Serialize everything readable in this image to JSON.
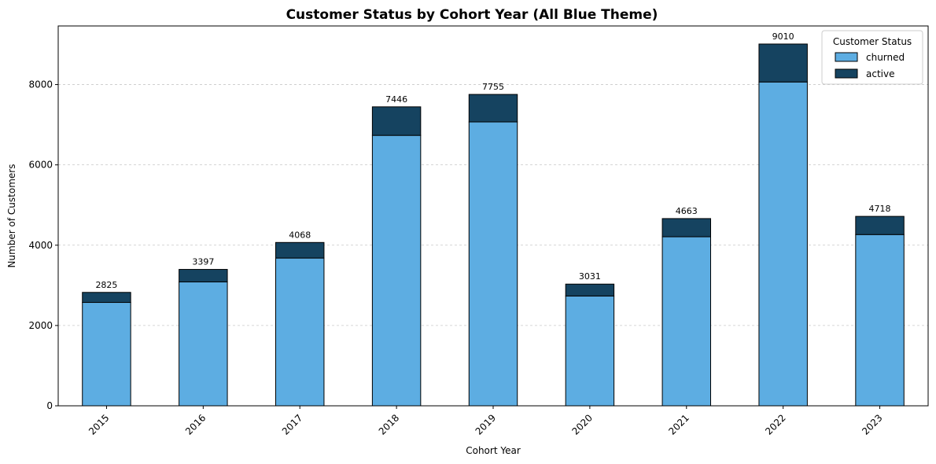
{
  "chart_data": {
    "type": "bar",
    "stacked": true,
    "title": "Customer Status by Cohort Year (All Blue Theme)",
    "xlabel": "Cohort Year",
    "ylabel": "Number of Customers",
    "categories": [
      "2015",
      "2016",
      "2017",
      "2018",
      "2019",
      "2020",
      "2021",
      "2022",
      "2023"
    ],
    "series": [
      {
        "name": "churned",
        "color": "#5DADE2",
        "values": [
          2575,
          3085,
          3680,
          6735,
          7070,
          2735,
          4210,
          8065,
          4265
        ]
      },
      {
        "name": "active",
        "color": "#154360",
        "values": [
          250,
          312,
          388,
          711,
          685,
          296,
          453,
          945,
          453
        ]
      }
    ],
    "totals": [
      2825,
      3397,
      4068,
      7446,
      7755,
      3031,
      4663,
      9010,
      4718
    ],
    "ylim": [
      0,
      9460
    ],
    "yticks": [
      0,
      2000,
      4000,
      6000,
      8000
    ],
    "grid": "y-dashed",
    "legend": {
      "title": "Customer Status",
      "placement": "top-right"
    },
    "xtick_rotation_deg": 45
  }
}
